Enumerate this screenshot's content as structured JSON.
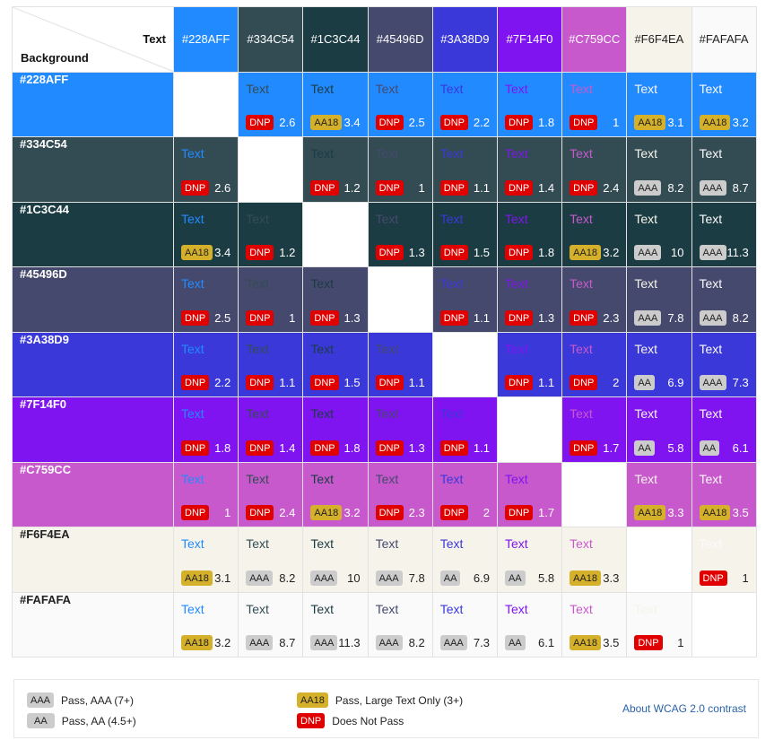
{
  "corner": {
    "text_label": "Text",
    "background_label": "Background"
  },
  "sample_text": "Text",
  "colors": [
    "#228AFF",
    "#334C54",
    "#1C3C44",
    "#45496D",
    "#3A38D9",
    "#7F14F0",
    "#C759CC",
    "#F6F4EA",
    "#FAFAFA"
  ],
  "rows": [
    {
      "bg": "#228AFF",
      "cells": [
        null,
        [
          "DNP",
          "2.6"
        ],
        [
          "AA18",
          "3.4"
        ],
        [
          "DNP",
          "2.5"
        ],
        [
          "DNP",
          "2.2"
        ],
        [
          "DNP",
          "1.8"
        ],
        [
          "DNP",
          "1"
        ],
        [
          "AA18",
          "3.1"
        ],
        [
          "AA18",
          "3.2"
        ]
      ]
    },
    {
      "bg": "#334C54",
      "cells": [
        [
          "DNP",
          "2.6"
        ],
        null,
        [
          "DNP",
          "1.2"
        ],
        [
          "DNP",
          "1"
        ],
        [
          "DNP",
          "1.1"
        ],
        [
          "DNP",
          "1.4"
        ],
        [
          "DNP",
          "2.4"
        ],
        [
          "AAA",
          "8.2"
        ],
        [
          "AAA",
          "8.7"
        ]
      ]
    },
    {
      "bg": "#1C3C44",
      "cells": [
        [
          "AA18",
          "3.4"
        ],
        [
          "DNP",
          "1.2"
        ],
        null,
        [
          "DNP",
          "1.3"
        ],
        [
          "DNP",
          "1.5"
        ],
        [
          "DNP",
          "1.8"
        ],
        [
          "AA18",
          "3.2"
        ],
        [
          "AAA",
          "10"
        ],
        [
          "AAA",
          "11.3"
        ]
      ]
    },
    {
      "bg": "#45496D",
      "cells": [
        [
          "DNP",
          "2.5"
        ],
        [
          "DNP",
          "1"
        ],
        [
          "DNP",
          "1.3"
        ],
        null,
        [
          "DNP",
          "1.1"
        ],
        [
          "DNP",
          "1.3"
        ],
        [
          "DNP",
          "2.3"
        ],
        [
          "AAA",
          "7.8"
        ],
        [
          "AAA",
          "8.2"
        ]
      ]
    },
    {
      "bg": "#3A38D9",
      "cells": [
        [
          "DNP",
          "2.2"
        ],
        [
          "DNP",
          "1.1"
        ],
        [
          "DNP",
          "1.5"
        ],
        [
          "DNP",
          "1.1"
        ],
        null,
        [
          "DNP",
          "1.1"
        ],
        [
          "DNP",
          "2"
        ],
        [
          "AA",
          "6.9"
        ],
        [
          "AAA",
          "7.3"
        ]
      ]
    },
    {
      "bg": "#7F14F0",
      "cells": [
        [
          "DNP",
          "1.8"
        ],
        [
          "DNP",
          "1.4"
        ],
        [
          "DNP",
          "1.8"
        ],
        [
          "DNP",
          "1.3"
        ],
        [
          "DNP",
          "1.1"
        ],
        null,
        [
          "DNP",
          "1.7"
        ],
        [
          "AA",
          "5.8"
        ],
        [
          "AA",
          "6.1"
        ]
      ]
    },
    {
      "bg": "#C759CC",
      "cells": [
        [
          "DNP",
          "1"
        ],
        [
          "DNP",
          "2.4"
        ],
        [
          "AA18",
          "3.2"
        ],
        [
          "DNP",
          "2.3"
        ],
        [
          "DNP",
          "2"
        ],
        [
          "DNP",
          "1.7"
        ],
        null,
        [
          "AA18",
          "3.3"
        ],
        [
          "AA18",
          "3.5"
        ]
      ]
    },
    {
      "bg": "#F6F4EA",
      "cells": [
        [
          "AA18",
          "3.1"
        ],
        [
          "AAA",
          "8.2"
        ],
        [
          "AAA",
          "10"
        ],
        [
          "AAA",
          "7.8"
        ],
        [
          "AA",
          "6.9"
        ],
        [
          "AA",
          "5.8"
        ],
        [
          "AA18",
          "3.3"
        ],
        null,
        [
          "DNP",
          "1"
        ]
      ]
    },
    {
      "bg": "#FAFAFA",
      "cells": [
        [
          "AA18",
          "3.2"
        ],
        [
          "AAA",
          "8.7"
        ],
        [
          "AAA",
          "11.3"
        ],
        [
          "AAA",
          "8.2"
        ],
        [
          "AAA",
          "7.3"
        ],
        [
          "AA",
          "6.1"
        ],
        [
          "AA18",
          "3.5"
        ],
        [
          "DNP",
          "1"
        ],
        null
      ]
    }
  ],
  "legend": {
    "aaa": {
      "badge": "AAA",
      "label": "Pass, AAA (7+)"
    },
    "aa": {
      "badge": "AA",
      "label": "Pass, AA (4.5+)"
    },
    "aa18": {
      "badge": "AA18",
      "label": "Pass, Large Text Only (3+)"
    },
    "dnp": {
      "badge": "DNP",
      "label": "Does Not Pass"
    },
    "link": "About WCAG 2.0 contrast"
  }
}
